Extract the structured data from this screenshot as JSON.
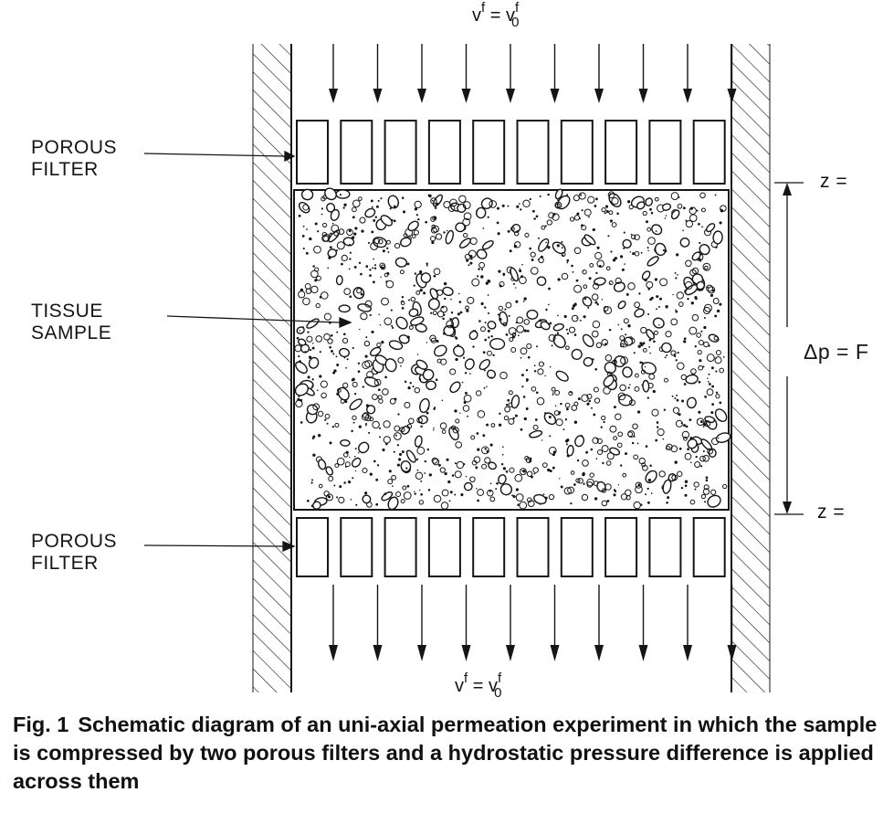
{
  "figure": {
    "top_velocity": {
      "lhs": "v",
      "lhs_sup": "f",
      "eq": " = ",
      "rhs": "v",
      "rhs_sup": "f",
      "rhs_sub": "0"
    },
    "bottom_velocity": {
      "lhs": "v",
      "lhs_sup": "f",
      "eq": " = ",
      "rhs": "v",
      "rhs_sup": "f",
      "rhs_sub": "0"
    },
    "labels": {
      "porous_filter_top": [
        "POROUS",
        "FILTER"
      ],
      "tissue_sample": [
        "TISSUE",
        "SAMPLE"
      ],
      "porous_filter_bottom": [
        "POROUS",
        "FILTER"
      ],
      "z_top": "z =",
      "z_bottom": "z =",
      "pressure": "Δp = F"
    },
    "top_arrow_count": 10,
    "bottom_arrow_count": 10,
    "filter_pore_count": 10,
    "colors": {
      "ink": "#151515",
      "paper": "#ffffff"
    }
  },
  "caption": {
    "number": "Fig. 1",
    "text": "Schematic diagram of an uni-axial permeation experiment in which the sample is compressed by two porous filters and a hydrostatic pressure difference is applied across them"
  }
}
